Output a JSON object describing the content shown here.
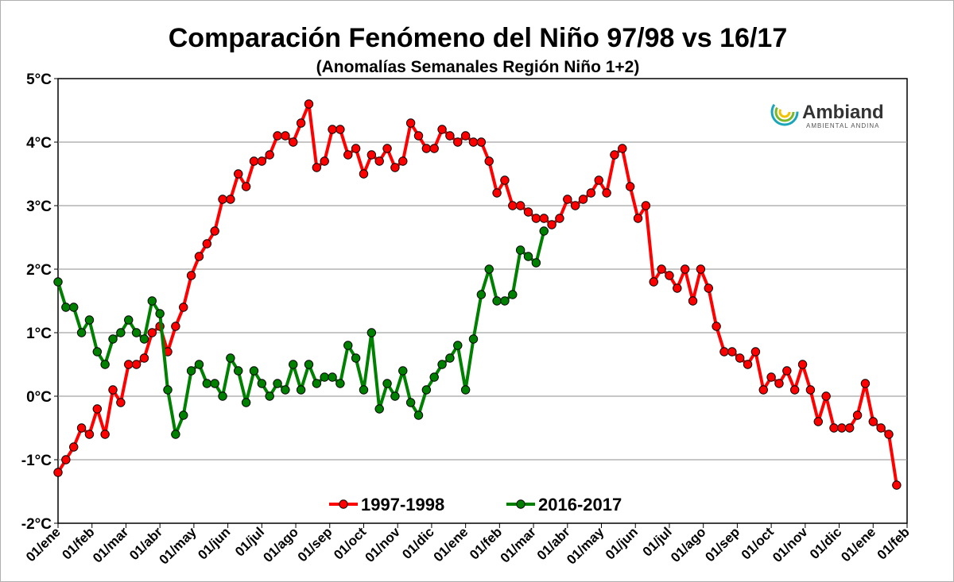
{
  "chart_data": {
    "type": "line",
    "title": "Comparación Fenómeno del Niño 97/98 vs 16/17",
    "subtitle": "(Anomalías Semanales Región Niño 1+2)",
    "xlabel": "",
    "ylabel": "",
    "ylim": [
      -2,
      5
    ],
    "yticks": [
      -2,
      -1,
      0,
      1,
      2,
      3,
      4,
      5
    ],
    "ytick_labels": [
      "-2°C",
      "-1°C",
      "0°C",
      "1°C",
      "2°C",
      "3°C",
      "4°C",
      "5°C"
    ],
    "x_tick_labels": [
      "01/ene",
      "01/feb",
      "01/mar",
      "01/abr",
      "01/may",
      "01/jun",
      "01/jul",
      "01/ago",
      "01/sep",
      "01/oct",
      "01/nov",
      "01/dic",
      "01/ene",
      "01/feb",
      "01/mar",
      "01/abr",
      "01/may",
      "01/jun",
      "01/jul",
      "01/ago",
      "01/sep",
      "01/oct",
      "01/nov",
      "01/dic",
      "01/ene",
      "01/feb"
    ],
    "grid": "horizontal",
    "legend_position": "bottom-center",
    "logo": {
      "name": "Ambiand",
      "tagline": "AMBIENTAL ANDINA"
    },
    "series": [
      {
        "name": "1997-1998",
        "color": "#ff0000",
        "values": [
          -1.2,
          -1.0,
          -0.8,
          -0.5,
          -0.6,
          -0.2,
          -0.6,
          0.1,
          -0.1,
          0.5,
          0.5,
          0.6,
          1.0,
          1.1,
          0.7,
          1.1,
          1.4,
          1.9,
          2.2,
          2.4,
          2.6,
          3.1,
          3.1,
          3.5,
          3.3,
          3.7,
          3.7,
          3.8,
          4.1,
          4.1,
          4.0,
          4.3,
          4.6,
          3.6,
          3.7,
          4.2,
          4.2,
          3.8,
          3.9,
          3.5,
          3.8,
          3.7,
          3.9,
          3.6,
          3.7,
          4.3,
          4.1,
          3.9,
          3.9,
          4.2,
          4.1,
          4.0,
          4.1,
          4.0,
          4.0,
          3.7,
          3.2,
          3.4,
          3.0,
          3.0,
          2.9,
          2.8,
          2.8,
          2.7,
          2.8,
          3.1,
          3.0,
          3.1,
          3.2,
          3.4,
          3.2,
          3.8,
          3.9,
          3.3,
          2.8,
          3.0,
          1.8,
          2.0,
          1.9,
          1.7,
          2.0,
          1.5,
          2.0,
          1.7,
          1.1,
          0.7,
          0.7,
          0.6,
          0.5,
          0.7,
          0.1,
          0.3,
          0.2,
          0.4,
          0.1,
          0.5,
          0.1,
          -0.4,
          0.0,
          -0.5,
          -0.5,
          -0.5,
          -0.3,
          0.2,
          -0.4,
          -0.5,
          -0.6,
          -1.4
        ]
      },
      {
        "name": "2016-2017",
        "color": "#008000",
        "values": [
          1.8,
          1.4,
          1.4,
          1.0,
          1.2,
          0.7,
          0.5,
          0.9,
          1.0,
          1.2,
          1.0,
          0.9,
          1.5,
          1.3,
          0.1,
          -0.6,
          -0.3,
          0.4,
          0.5,
          0.2,
          0.2,
          0.0,
          0.6,
          0.4,
          -0.1,
          0.4,
          0.2,
          0.0,
          0.2,
          0.1,
          0.5,
          0.1,
          0.5,
          0.2,
          0.3,
          0.3,
          0.2,
          0.8,
          0.6,
          0.1,
          1.0,
          -0.2,
          0.2,
          0.0,
          0.4,
          -0.1,
          -0.3,
          0.1,
          0.3,
          0.5,
          0.6,
          0.8,
          0.1,
          0.9,
          1.6,
          2.0,
          1.5,
          1.5,
          1.6,
          2.3,
          2.2,
          2.1,
          2.6
        ]
      }
    ]
  }
}
